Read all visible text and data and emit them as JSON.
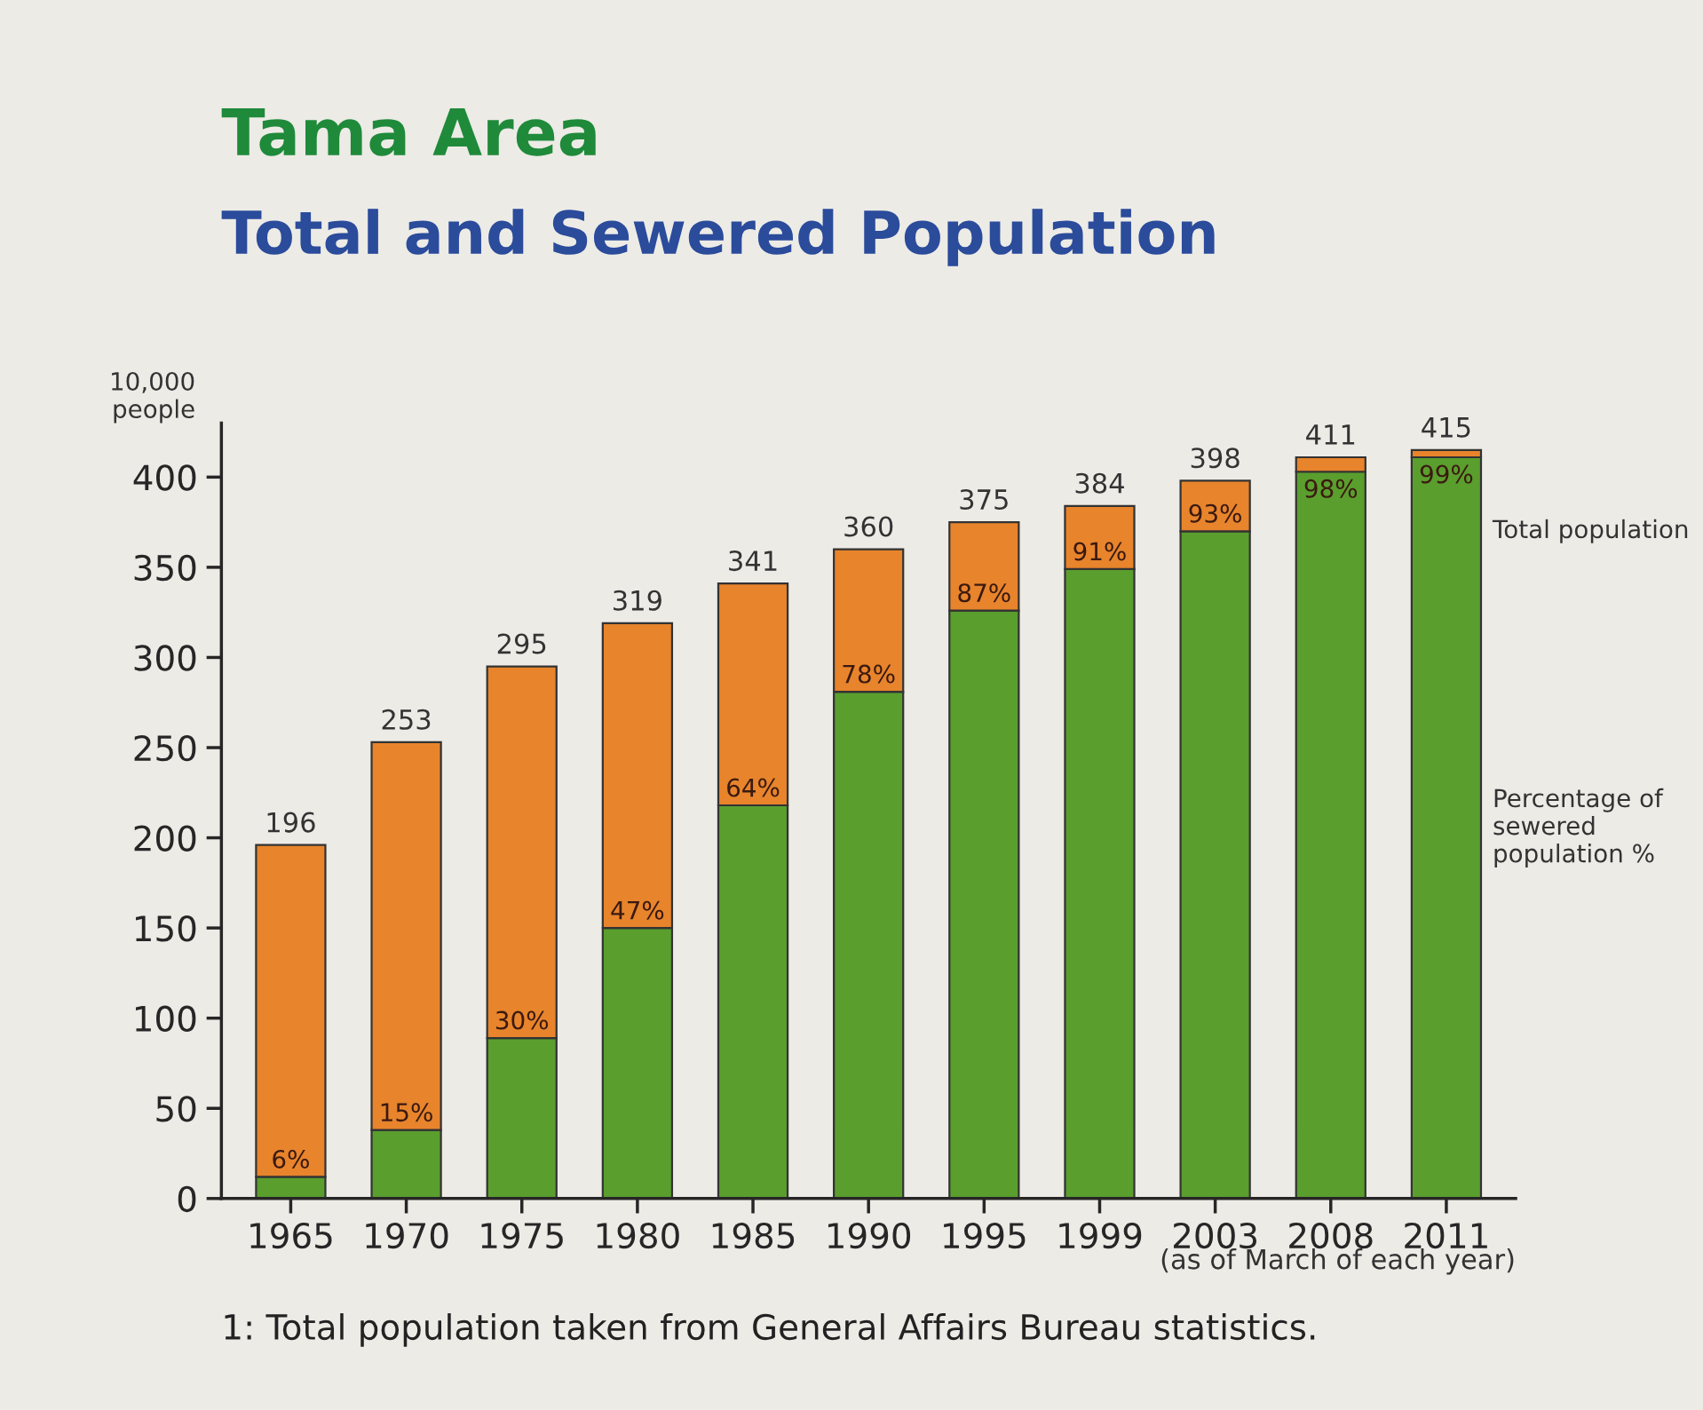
{
  "chart_data": {
    "type": "bar",
    "title": "Tama Area",
    "subtitle": "Total and Sewered Population",
    "ylabel": "10,000\npeople",
    "categories": [
      "1965",
      "1970",
      "1975",
      "1980",
      "1985",
      "1990",
      "1995",
      "1999",
      "2003",
      "2008",
      "2011"
    ],
    "stacked": true,
    "series": [
      {
        "name": "Percentage of sewered population %",
        "color": "#5a9e2e",
        "values": [
          12,
          38,
          89,
          150,
          218,
          281,
          326,
          349,
          370,
          403,
          411
        ]
      },
      {
        "name": "Total population",
        "color": "#e8842c",
        "values": [
          184,
          215,
          206,
          169,
          123,
          79,
          49,
          35,
          28,
          8,
          4
        ]
      }
    ],
    "totals": [
      "196",
      "253",
      "295",
      "319",
      "341",
      "360",
      "375",
      "384",
      "398",
      "411",
      "415"
    ],
    "ylim": [
      0,
      430
    ],
    "yticks": [
      0,
      50,
      100,
      150,
      200,
      250,
      300,
      350,
      400
    ],
    "grid": false,
    "legend": false,
    "annotations": [
      "(as of March of each year)",
      "1: Total population taken from General Affairs Bureau statistics.",
      {
        "text": "6%",
        "x": "1965",
        "y": 12
      },
      {
        "text": "15%",
        "x": "1970",
        "y": 38
      },
      {
        "text": "30%",
        "x": "1975",
        "y": 89
      },
      {
        "text": "47%",
        "x": "1980",
        "y": 150
      },
      {
        "text": "64%",
        "x": "1985",
        "y": 218
      },
      {
        "text": "78%",
        "x": "1990",
        "y": 281
      },
      {
        "text": "87%",
        "x": "1995",
        "y": 326
      },
      {
        "text": "91%",
        "x": "1999",
        "y": 349
      },
      {
        "text": "93%",
        "x": "2003",
        "y": 370
      },
      {
        "text": "98%",
        "x": "2008",
        "y": 403
      },
      {
        "text": "99%",
        "x": "2011",
        "y": 411
      }
    ]
  }
}
